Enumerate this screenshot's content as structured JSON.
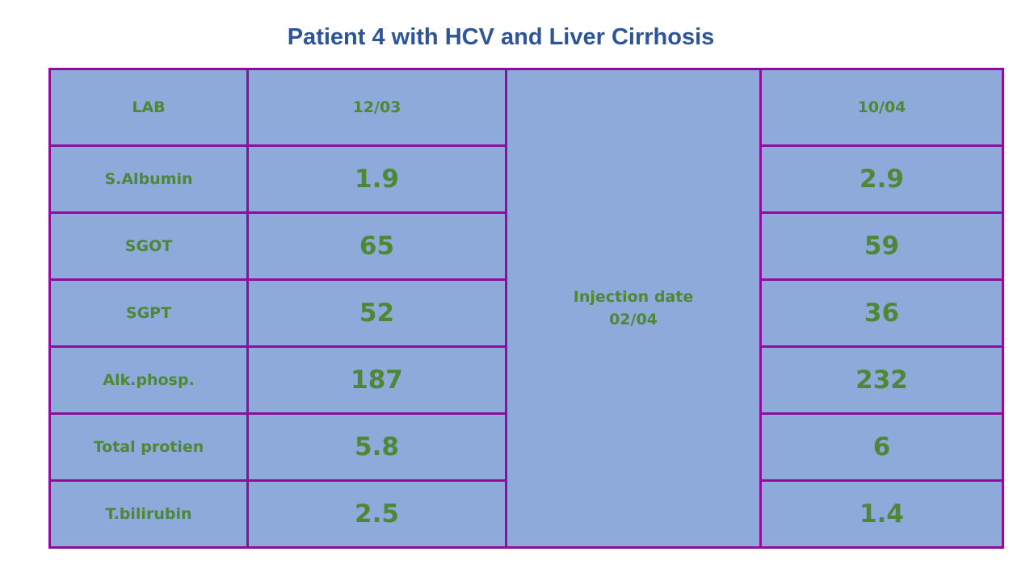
{
  "title": "Patient 4 with HCV and Liver Cirrhosis",
  "table": {
    "headers": {
      "lab": "LAB",
      "before_date": "12/03",
      "after_date": "10/04"
    },
    "injection": {
      "line1": "Injection date",
      "line2": "02/04"
    },
    "rows": [
      {
        "label": "S.Albumin",
        "before": "1.9",
        "after": "2.9"
      },
      {
        "label": "SGOT",
        "before": "65",
        "after": "59"
      },
      {
        "label": "SGPT",
        "before": "52",
        "after": "36"
      },
      {
        "label": "Alk.phosp.",
        "before": "187",
        "after": "232"
      },
      {
        "label": "Total protien",
        "before": "5.8",
        "after": "6"
      },
      {
        "label": "T.bilirubin",
        "before": "2.5",
        "after": "1.4"
      }
    ]
  },
  "colors": {
    "title": "#2e5597",
    "cell_fill": "#8eaadb",
    "border": "#8e0e9b",
    "text": "#4e8736"
  }
}
